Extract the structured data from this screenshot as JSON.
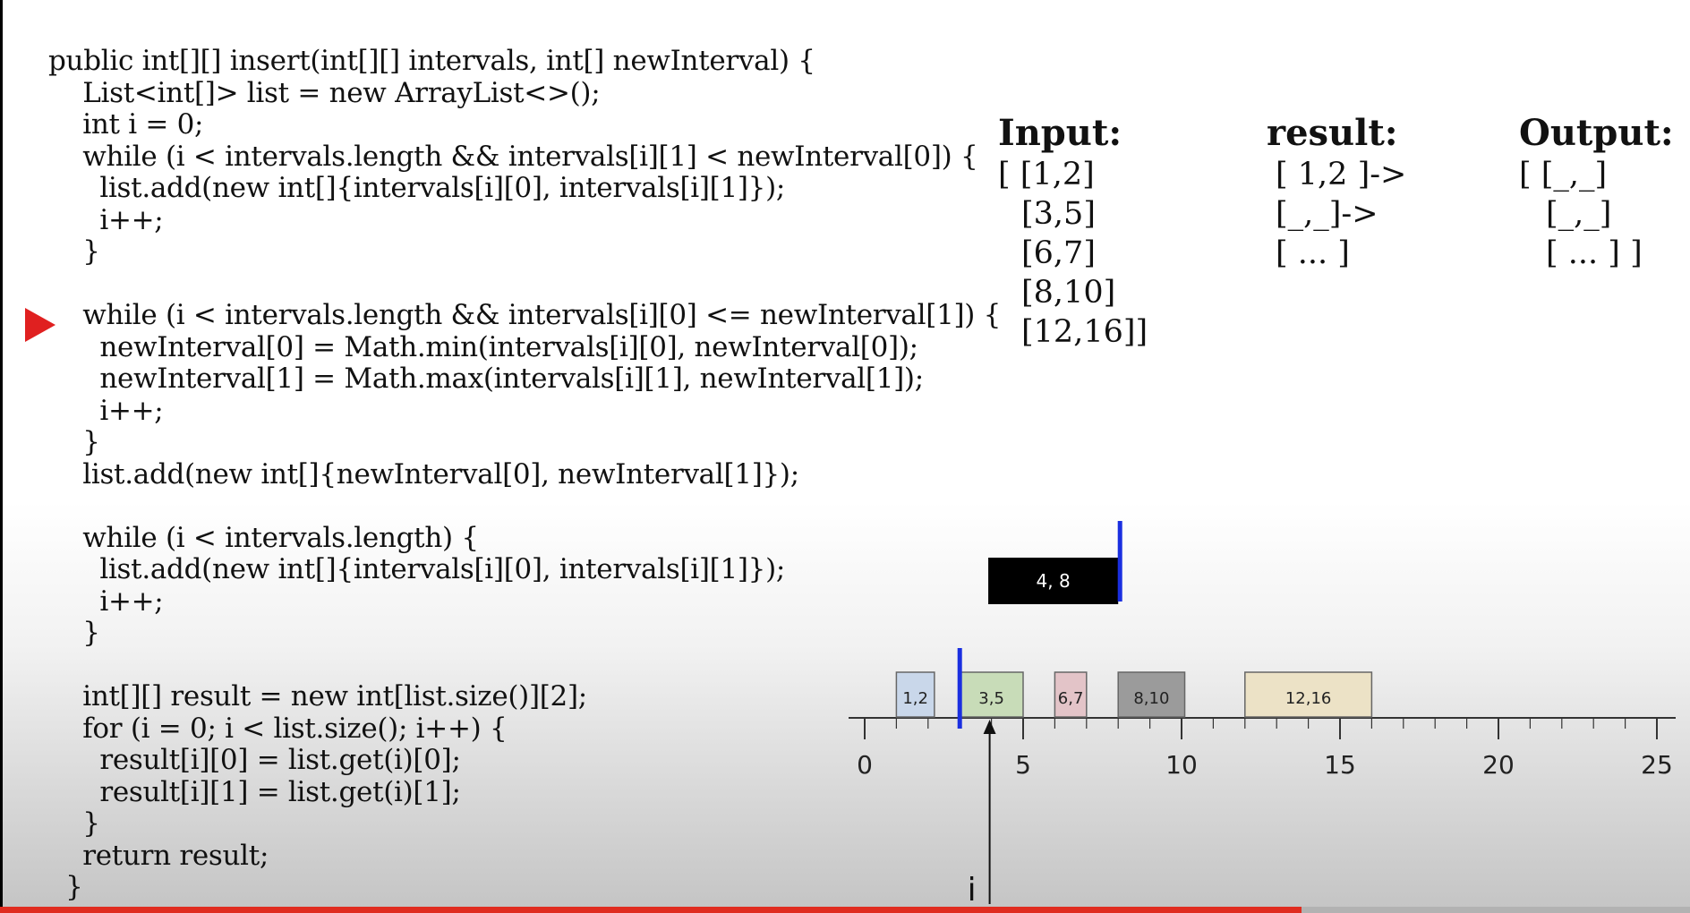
{
  "code": {
    "lines": [
      "public int[][] insert(int[][] intervals, int[] newInterval) {",
      "    List<int[]> list = new ArrayList<>();",
      "    int i = 0;",
      "    while (i < intervals.length && intervals[i][1] < newInterval[0]) {",
      "      list.add(new int[]{intervals[i][0], intervals[i][1]});",
      "      i++;",
      "    }",
      "",
      "    while (i < intervals.length && intervals[i][0] <= newInterval[1]) {",
      "      newInterval[0] = Math.min(intervals[i][0], newInterval[0]);",
      "      newInterval[1] = Math.max(intervals[i][1], newInterval[1]);",
      "      i++;",
      "    }",
      "    list.add(new int[]{newInterval[0], newInterval[1]});",
      "",
      "    while (i < intervals.length) {",
      "      list.add(new int[]{intervals[i][0], intervals[i][1]});",
      "      i++;",
      "    }",
      "",
      "    int[][] result = new int[list.size()][2];",
      "    for (i = 0; i < list.size(); i++) {",
      "      result[i][0] = list.get(i)[0];",
      "      result[i][1] = list.get(i)[1];",
      "    }",
      "    return result;",
      "  }"
    ],
    "current_line_index": 8
  },
  "input": {
    "title": "Input:",
    "rows": [
      "[ [1,2]",
      "[3,5]",
      "[6,7]",
      "[8,10]",
      "[12,16]]"
    ]
  },
  "result": {
    "title": "result:",
    "rows": [
      "[ 1,2 ]->",
      "[_,_]->",
      "[ ... ]"
    ]
  },
  "output": {
    "title": "Output:",
    "rows": [
      "[ [_,_]",
      "[_,_]",
      "[ ... ] ]"
    ]
  },
  "timeline": {
    "axis_min": 0,
    "axis_max": 25,
    "tick_labels": [
      "0",
      "5",
      "10",
      "15",
      "20",
      "25"
    ],
    "intervals": [
      {
        "label": "1,2",
        "start": 1,
        "end": 2.2,
        "color": "#c9d7ea"
      },
      {
        "label": "3,5",
        "start": 3,
        "end": 5,
        "color": "#c8dcb8"
      },
      {
        "label": "6,7",
        "start": 6,
        "end": 7,
        "color": "#e3c4c8"
      },
      {
        "label": "8,10",
        "start": 8,
        "end": 10.1,
        "color": "#9b9b9b"
      },
      {
        "label": "12,16",
        "start": 12,
        "end": 16,
        "color": "#ece2c6"
      }
    ],
    "new_interval": {
      "label": "4, 8",
      "start": 3.9,
      "end": 8,
      "color": "#000000"
    },
    "marker_positions": [
      3,
      8
    ],
    "pointer_value": 4,
    "pointer_label": "i"
  },
  "video": {
    "progress": 0.77
  }
}
